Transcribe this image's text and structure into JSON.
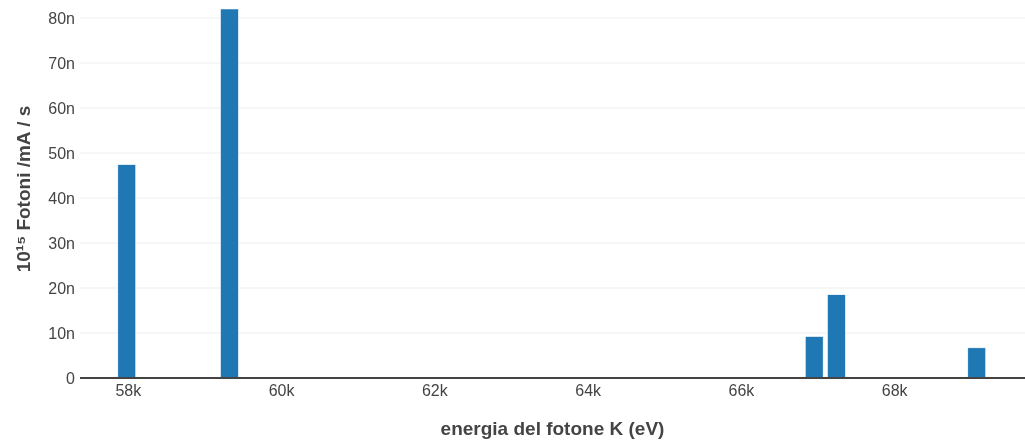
{
  "chart_data": {
    "type": "bar",
    "xlabel": "energia del fotone K (eV)",
    "ylabel": "10¹⁵ Fotoni /mA / s",
    "x": [
      57980,
      59320,
      66950,
      67240,
      69070
    ],
    "values": [
      47.4,
      82,
      9.2,
      18.5,
      6.7
    ],
    "color": "#1f77b4",
    "xlim": [
      57370,
      69700
    ],
    "xticks": [
      {
        "value": 58000,
        "label": "58k"
      },
      {
        "value": 60000,
        "label": "60k"
      },
      {
        "value": 62000,
        "label": "62k"
      },
      {
        "value": 64000,
        "label": "64k"
      },
      {
        "value": 66000,
        "label": "66k"
      },
      {
        "value": 68000,
        "label": "68k"
      }
    ],
    "ylim": [
      0,
      84
    ],
    "yticks": [
      0,
      {
        "value": 10,
        "label": "10n"
      },
      {
        "value": 20,
        "label": "20n"
      },
      {
        "value": 30,
        "label": "30n"
      },
      {
        "value": 40,
        "label": "40n"
      },
      {
        "value": 50,
        "label": "50n"
      },
      {
        "value": 60,
        "label": "60n"
      },
      {
        "value": 70,
        "label": "70n"
      },
      {
        "value": 80,
        "label": "80n"
      }
    ],
    "grid": "y"
  }
}
